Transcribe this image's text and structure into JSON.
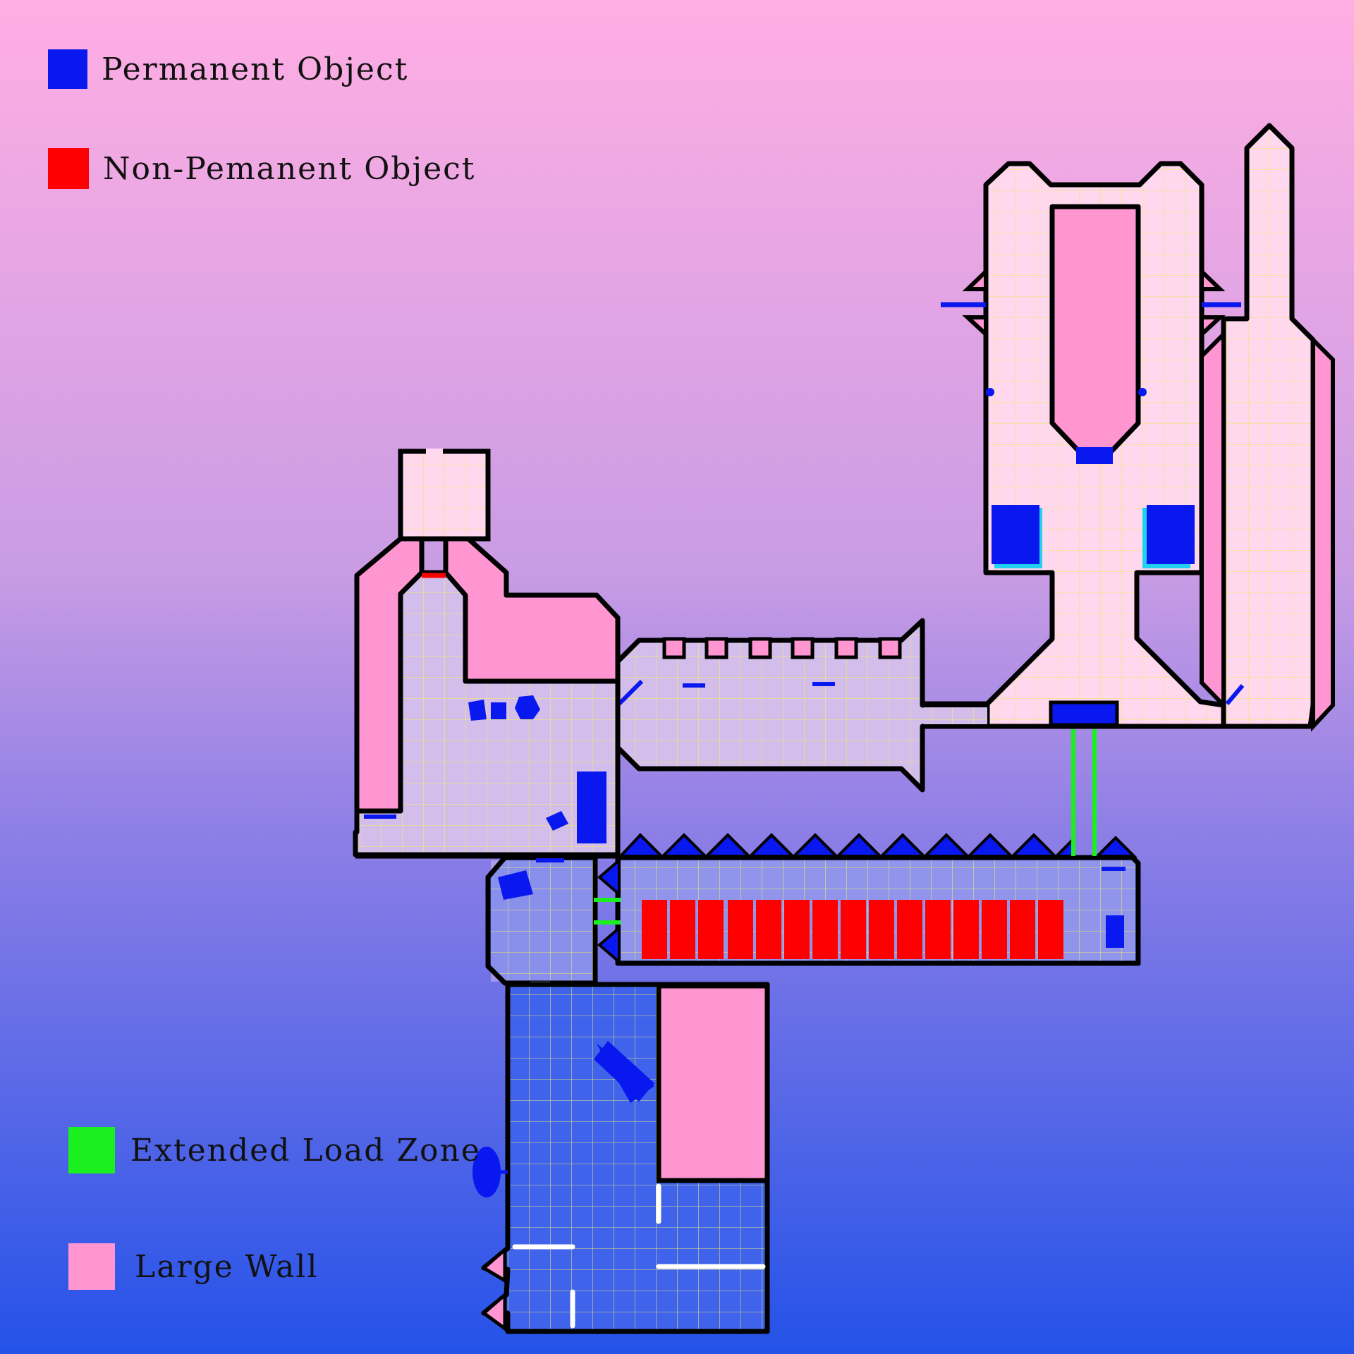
{
  "colors": {
    "background_top": "#FFAEE3",
    "background_mid": "#B996E4",
    "background_bottom": "#2452E8",
    "permanent": "#0A18F0",
    "non_permanent": "#FF0000",
    "load_zone": "#19F01E",
    "large_wall": "#FF96D2",
    "floor_pink": "#FFD4EC",
    "floor_blue": "#3E62EA",
    "grid": "#EEEE7A",
    "outline": "#000000",
    "cyan": "#22D0F0",
    "door_white": "#FFFFFF"
  },
  "legend": {
    "permanent": {
      "label": "Permanent Object",
      "icon": "blue-square-swatch"
    },
    "non_permanent": {
      "label": "Non-Pemanent Object",
      "icon": "red-square-swatch"
    },
    "load_zone": {
      "label": "Extended Load Zone",
      "icon": "green-square-swatch"
    },
    "large_wall": {
      "label": "Large Wall",
      "icon": "pink-square-swatch"
    }
  }
}
